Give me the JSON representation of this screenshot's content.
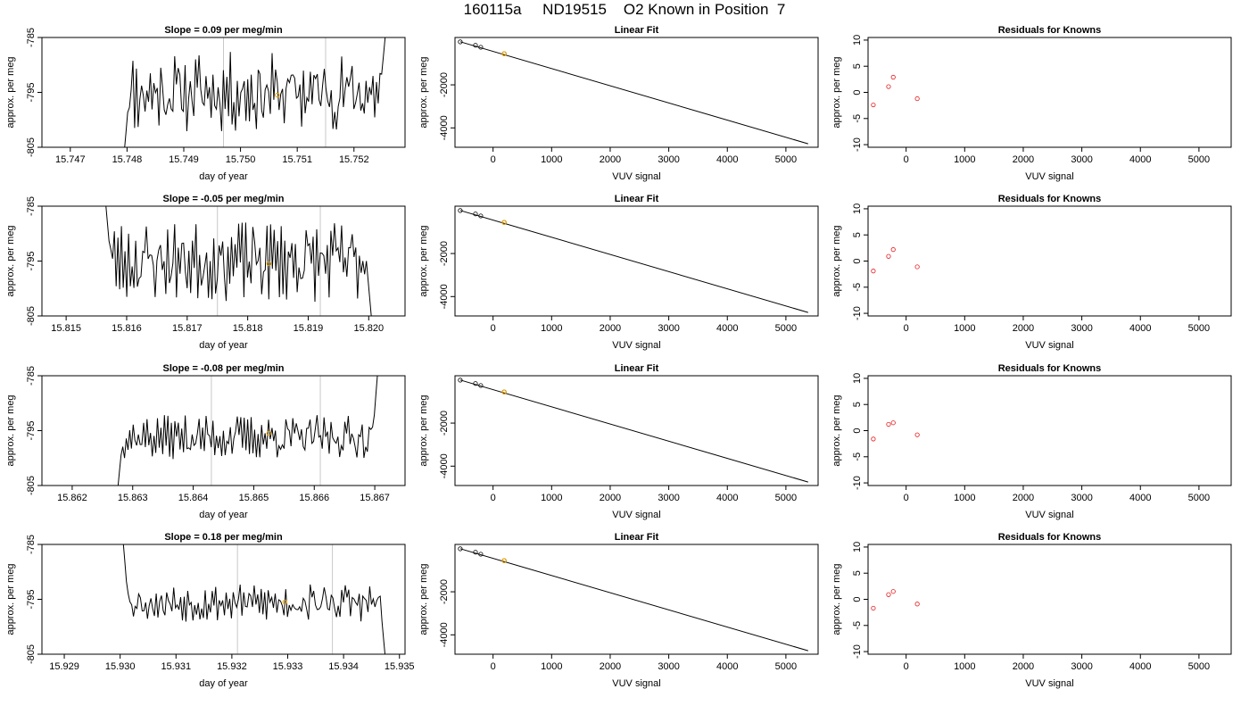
{
  "page_title": "160115a     ND19515    O2 Known in Position  7",
  "chart_data": [
    {
      "type": "line",
      "title": "Slope =  0.09  per meg/min",
      "xlabel": "day of year",
      "ylabel": "approx. per meg",
      "xlim": [
        15.7465,
        15.7529
      ],
      "ylim": [
        -805,
        -785
      ],
      "xticks": [
        "15.747",
        "15.748",
        "15.749",
        "15.750",
        "15.751",
        "15.752"
      ],
      "yticks": [
        "-805",
        "-795",
        "-785"
      ],
      "vlines": [
        15.7497,
        15.7515
      ],
      "start": 15.74795,
      "end": 15.75255,
      "marker": {
        "x": 15.75065,
        "y": -795.5,
        "color": "#e69f00"
      },
      "seed": 11,
      "base": -795,
      "amp": 5.5,
      "edge_left": -806,
      "edge_right": -785
    },
    {
      "type": "scatter",
      "title": "Linear Fit",
      "xlabel": "VUV signal",
      "ylabel": "approx. per meg",
      "xlim": [
        -650,
        5550
      ],
      "ylim": [
        -4900,
        200
      ],
      "xticks": [
        "0",
        "1000",
        "2000",
        "3000",
        "4000",
        "5000"
      ],
      "yticks": [
        "-4000",
        "-2000"
      ],
      "points": [
        {
          "x": -560,
          "y": -3
        },
        {
          "x": -300,
          "y": -161
        },
        {
          "x": -210,
          "y": -254
        },
        {
          "x": 190,
          "y": -553
        }
      ],
      "fit": [
        {
          "x": -560,
          "y": 0
        },
        {
          "x": 5380,
          "y": -4740
        }
      ],
      "marker": {
        "x": 190,
        "y": -553,
        "color": "#e69f00"
      }
    },
    {
      "type": "scatter",
      "title": "Residuals for Knowns",
      "xlabel": "VUV signal",
      "ylabel": "approx. per meg",
      "xlim": [
        -650,
        5550
      ],
      "ylim": [
        -10.5,
        10.5
      ],
      "xticks": [
        "0",
        "1000",
        "2000",
        "3000",
        "4000",
        "5000"
      ],
      "yticks": [
        "-10",
        "-5",
        "0",
        "5",
        "10"
      ],
      "points": [
        {
          "x": -560,
          "y": -2.4
        },
        {
          "x": -300,
          "y": 1.1
        },
        {
          "x": -220,
          "y": 2.9
        },
        {
          "x": 190,
          "y": -1.2
        }
      ]
    },
    {
      "type": "line",
      "title": "Slope =  -0.05  per meg/min",
      "xlabel": "day of year",
      "ylabel": "approx. per meg",
      "xlim": [
        15.8146,
        15.8206
      ],
      "ylim": [
        -805,
        -785
      ],
      "xticks": [
        "15.815",
        "15.816",
        "15.817",
        "15.818",
        "15.819",
        "15.820"
      ],
      "yticks": [
        "-805",
        "-795",
        "-785"
      ],
      "vlines": [
        15.8175,
        15.8192
      ],
      "start": 15.81565,
      "end": 15.82005,
      "marker": {
        "x": 15.81835,
        "y": -795.5,
        "color": "#e69f00"
      },
      "seed": 23,
      "base": -795,
      "amp": 5.5,
      "edge_left": -784,
      "edge_right": -806
    },
    {
      "type": "scatter",
      "title": "Linear Fit",
      "xlabel": "VUV signal",
      "ylabel": "approx. per meg",
      "xlim": [
        -650,
        5550
      ],
      "ylim": [
        -4900,
        200
      ],
      "xticks": [
        "0",
        "1000",
        "2000",
        "3000",
        "4000",
        "5000"
      ],
      "yticks": [
        "-4000",
        "-2000"
      ],
      "points": [
        {
          "x": -560,
          "y": -3
        },
        {
          "x": -300,
          "y": -161
        },
        {
          "x": -210,
          "y": -254
        },
        {
          "x": 190,
          "y": -553
        }
      ],
      "fit": [
        {
          "x": -560,
          "y": 0
        },
        {
          "x": 5380,
          "y": -4740
        }
      ],
      "marker": {
        "x": 190,
        "y": -553,
        "color": "#e69f00"
      }
    },
    {
      "type": "scatter",
      "title": "Residuals for Knowns",
      "xlabel": "VUV signal",
      "ylabel": "approx. per meg",
      "xlim": [
        -650,
        5550
      ],
      "ylim": [
        -10.5,
        10.5
      ],
      "xticks": [
        "0",
        "1000",
        "2000",
        "3000",
        "4000",
        "5000"
      ],
      "yticks": [
        "-10",
        "-5",
        "0",
        "5",
        "10"
      ],
      "points": [
        {
          "x": -560,
          "y": -1.9
        },
        {
          "x": -300,
          "y": 0.9
        },
        {
          "x": -220,
          "y": 2.2
        },
        {
          "x": 190,
          "y": -1.1
        }
      ]
    },
    {
      "type": "line",
      "title": "Slope =  -0.08  per meg/min",
      "xlabel": "day of year",
      "ylabel": "approx. per meg",
      "xlim": [
        15.8615,
        15.8675
      ],
      "ylim": [
        -805,
        -785
      ],
      "xticks": [
        "15.862",
        "15.863",
        "15.864",
        "15.865",
        "15.866",
        "15.867"
      ],
      "yticks": [
        "-805",
        "-795",
        "-785"
      ],
      "vlines": [
        15.8643,
        15.8661
      ],
      "start": 15.86275,
      "end": 15.86705,
      "marker": {
        "x": 15.86525,
        "y": -795.5,
        "color": "#e69f00"
      },
      "seed": 37,
      "base": -796.2,
      "amp": 3.0,
      "edge_left": -806,
      "edge_right": -784
    },
    {
      "type": "scatter",
      "title": "Linear Fit",
      "xlabel": "VUV signal",
      "ylabel": "approx. per meg",
      "xlim": [
        -650,
        5550
      ],
      "ylim": [
        -4900,
        200
      ],
      "xticks": [
        "0",
        "1000",
        "2000",
        "3000",
        "4000",
        "5000"
      ],
      "yticks": [
        "-4000",
        "-2000"
      ],
      "points": [
        {
          "x": -560,
          "y": -3
        },
        {
          "x": -300,
          "y": -161
        },
        {
          "x": -210,
          "y": -254
        },
        {
          "x": 190,
          "y": -553
        }
      ],
      "fit": [
        {
          "x": -560,
          "y": 0
        },
        {
          "x": 5380,
          "y": -4740
        }
      ],
      "marker": {
        "x": 190,
        "y": -553,
        "color": "#e69f00"
      }
    },
    {
      "type": "scatter",
      "title": "Residuals for Knowns",
      "xlabel": "VUV signal",
      "ylabel": "approx. per meg",
      "xlim": [
        -650,
        5550
      ],
      "ylim": [
        -10.5,
        10.5
      ],
      "xticks": [
        "0",
        "1000",
        "2000",
        "3000",
        "4000",
        "5000"
      ],
      "yticks": [
        "-10",
        "-5",
        "0",
        "5",
        "10"
      ],
      "points": [
        {
          "x": -560,
          "y": -1.6
        },
        {
          "x": -300,
          "y": 1.2
        },
        {
          "x": -220,
          "y": 1.5
        },
        {
          "x": 190,
          "y": -0.8
        }
      ]
    },
    {
      "type": "line",
      "title": "Slope =  0.18  per meg/min",
      "xlabel": "day of year",
      "ylabel": "approx. per meg",
      "xlim": [
        15.9286,
        15.9351
      ],
      "ylim": [
        -805,
        -785
      ],
      "xticks": [
        "15.929",
        "15.930",
        "15.931",
        "15.932",
        "15.933",
        "15.934",
        "15.935"
      ],
      "yticks": [
        "-805",
        "-795",
        "-785"
      ],
      "vlines": [
        15.9321,
        15.9338
      ],
      "start": 15.93005,
      "end": 15.93475,
      "marker": {
        "x": 15.93295,
        "y": -795.5,
        "color": "#e69f00"
      },
      "seed": 53,
      "base": -795.6,
      "amp": 2.6,
      "edge_left": -784,
      "edge_right": -806
    },
    {
      "type": "scatter",
      "title": "Linear Fit",
      "xlabel": "VUV signal",
      "ylabel": "approx. per meg",
      "xlim": [
        -650,
        5550
      ],
      "ylim": [
        -4900,
        200
      ],
      "xticks": [
        "0",
        "1000",
        "2000",
        "3000",
        "4000",
        "5000"
      ],
      "yticks": [
        "-4000",
        "-2000"
      ],
      "points": [
        {
          "x": -560,
          "y": -3
        },
        {
          "x": -300,
          "y": -161
        },
        {
          "x": -210,
          "y": -254
        },
        {
          "x": 190,
          "y": -553
        }
      ],
      "fit": [
        {
          "x": -560,
          "y": 0
        },
        {
          "x": 5380,
          "y": -4740
        }
      ],
      "marker": {
        "x": 190,
        "y": -553,
        "color": "#e69f00"
      }
    },
    {
      "type": "scatter",
      "title": "Residuals for Knowns",
      "xlabel": "VUV signal",
      "ylabel": "approx. per meg",
      "xlim": [
        -650,
        5550
      ],
      "ylim": [
        -10.5,
        10.5
      ],
      "xticks": [
        "0",
        "1000",
        "2000",
        "3000",
        "4000",
        "5000"
      ],
      "yticks": [
        "-10",
        "-5",
        "0",
        "5",
        "10"
      ],
      "points": [
        {
          "x": -560,
          "y": -1.7
        },
        {
          "x": -300,
          "y": 0.9
        },
        {
          "x": -220,
          "y": 1.5
        },
        {
          "x": 190,
          "y": -0.9
        }
      ]
    }
  ]
}
